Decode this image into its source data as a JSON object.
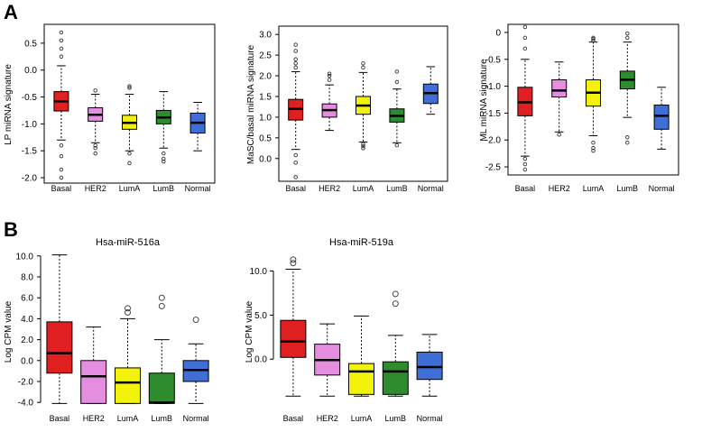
{
  "panels": {
    "a": "A",
    "b": "B"
  },
  "chart_data": [
    {
      "type": "box",
      "title": "",
      "xlabel": "",
      "ylabel": "LP miRNA signature",
      "ylim": [
        -2.1,
        0.85
      ],
      "yticks": [
        "-2.0",
        "-1.5",
        "-1.0",
        "-0.5",
        "0.0",
        "0.5"
      ],
      "categories": [
        "Basal",
        "HER2",
        "LumA",
        "LumB",
        "Normal"
      ],
      "colors": [
        "#e02020",
        "#e58ee0",
        "#f2f20a",
        "#2e8b2e",
        "#3f6fd6"
      ],
      "series": [
        {
          "name": "Basal",
          "q1": -0.76,
          "median": -0.58,
          "q3": -0.4,
          "whisker_low": -1.3,
          "whisker_high": 0.08,
          "outliers": [
            0.7,
            0.55,
            0.4,
            0.25,
            -1.4,
            -1.6,
            -1.85,
            -2.0
          ]
        },
        {
          "name": "HER2",
          "q1": -0.95,
          "median": -0.83,
          "q3": -0.7,
          "whisker_low": -1.35,
          "whisker_high": -0.45,
          "outliers": [
            -0.38,
            -1.4,
            -1.45,
            -1.55
          ]
        },
        {
          "name": "LumA",
          "q1": -1.1,
          "median": -0.98,
          "q3": -0.84,
          "whisker_low": -1.5,
          "whisker_high": -0.45,
          "outliers": [
            -0.33,
            -0.3,
            -1.55,
            -1.73
          ]
        },
        {
          "name": "LumB",
          "q1": -1.0,
          "median": -0.88,
          "q3": -0.75,
          "whisker_low": -1.45,
          "whisker_high": -0.4,
          "outliers": [
            -1.55,
            -1.65,
            -1.7
          ]
        },
        {
          "name": "Normal",
          "q1": -1.17,
          "median": -0.98,
          "q3": -0.8,
          "whisker_low": -1.5,
          "whisker_high": -0.6,
          "outliers": []
        }
      ]
    },
    {
      "type": "box",
      "title": "",
      "xlabel": "",
      "ylabel": "MaSC/basal miRNA signature",
      "ylim": [
        -0.55,
        3.2
      ],
      "yticks": [
        "0.0",
        "0.5",
        "1.0",
        "1.5",
        "2.0",
        "2.5",
        "3.0"
      ],
      "categories": [
        "Basal",
        "HER2",
        "LumA",
        "LumB",
        "Normal"
      ],
      "colors": [
        "#e02020",
        "#e58ee0",
        "#f2f20a",
        "#2e8b2e",
        "#3f6fd6"
      ],
      "series": [
        {
          "name": "Basal",
          "q1": 0.93,
          "median": 1.2,
          "q3": 1.43,
          "whisker_low": 0.22,
          "whisker_high": 2.1,
          "outliers": [
            2.75,
            2.6,
            2.4,
            2.3,
            2.2,
            0.08,
            -0.1,
            -0.45
          ]
        },
        {
          "name": "HER2",
          "q1": 1.0,
          "median": 1.17,
          "q3": 1.32,
          "whisker_low": 0.68,
          "whisker_high": 1.78,
          "outliers": [
            1.9,
            2.0,
            2.05
          ]
        },
        {
          "name": "LumA",
          "q1": 1.07,
          "median": 1.28,
          "q3": 1.5,
          "whisker_low": 0.4,
          "whisker_high": 2.08,
          "outliers": [
            2.2,
            2.3,
            0.35,
            0.3,
            0.25
          ]
        },
        {
          "name": "LumB",
          "q1": 0.88,
          "median": 1.03,
          "q3": 1.2,
          "whisker_low": 0.38,
          "whisker_high": 1.68,
          "outliers": [
            1.85,
            2.1,
            0.32
          ]
        },
        {
          "name": "Normal",
          "q1": 1.33,
          "median": 1.58,
          "q3": 1.8,
          "whisker_low": 1.07,
          "whisker_high": 2.22,
          "outliers": []
        }
      ]
    },
    {
      "type": "box",
      "title": "",
      "xlabel": "",
      "ylabel": "ML miRNA signature",
      "ylim": [
        -2.65,
        0.15
      ],
      "yticks": [
        "-2.5",
        "-2.0",
        "-1.5",
        "-1.0",
        "-0.5",
        "0"
      ],
      "categories": [
        "Basal",
        "HER2",
        "LumA",
        "LumB",
        "Normal"
      ],
      "colors": [
        "#e02020",
        "#e58ee0",
        "#f2f20a",
        "#2e8b2e",
        "#3f6fd6"
      ],
      "series": [
        {
          "name": "Basal",
          "q1": -1.55,
          "median": -1.3,
          "q3": -1.02,
          "whisker_low": -2.3,
          "whisker_high": -0.5,
          "outliers": [
            0.1,
            -0.1,
            -0.3,
            -2.35,
            -2.45,
            -2.55
          ]
        },
        {
          "name": "HER2",
          "q1": -1.2,
          "median": -1.08,
          "q3": -0.88,
          "whisker_low": -1.85,
          "whisker_high": -0.55,
          "outliers": [
            -1.9
          ]
        },
        {
          "name": "LumA",
          "q1": -1.37,
          "median": -1.12,
          "q3": -0.88,
          "whisker_low": -1.92,
          "whisker_high": -0.18,
          "outliers": [
            -0.1,
            -0.12,
            -0.15,
            -2.05,
            -2.15,
            -2.2
          ]
        },
        {
          "name": "LumB",
          "q1": -1.05,
          "median": -0.88,
          "q3": -0.72,
          "whisker_low": -1.58,
          "whisker_high": -0.18,
          "outliers": [
            -0.02,
            -0.1,
            -1.95,
            -2.05
          ]
        },
        {
          "name": "Normal",
          "q1": -1.8,
          "median": -1.55,
          "q3": -1.35,
          "whisker_low": -2.17,
          "whisker_high": -1.02,
          "outliers": []
        }
      ]
    },
    {
      "type": "box",
      "title": "Hsa-miR-516a",
      "xlabel": "",
      "ylabel": "Log CPM value",
      "ylim": [
        -4.5,
        10.5
      ],
      "yticks": [
        "-4.0",
        "-2.0",
        "0.0",
        "2.0",
        "4.0",
        "6.0",
        "8.0",
        "10.0"
      ],
      "categories": [
        "Basal",
        "HER2",
        "LumA",
        "LumB",
        "Normal"
      ],
      "colors": [
        "#e02020",
        "#e58ee0",
        "#f2f20a",
        "#2e8b2e",
        "#3f6fd6"
      ],
      "series": [
        {
          "name": "Basal",
          "q1": -1.2,
          "median": 0.7,
          "q3": 3.7,
          "whisker_low": -4.1,
          "whisker_high": 10.1,
          "outliers": []
        },
        {
          "name": "HER2",
          "q1": -4.1,
          "median": -1.5,
          "q3": 0.0,
          "whisker_low": -4.1,
          "whisker_high": 3.2,
          "outliers": []
        },
        {
          "name": "LumA",
          "q1": -4.1,
          "median": -2.1,
          "q3": -0.7,
          "whisker_low": -4.1,
          "whisker_high": 4.0,
          "outliers": [
            4.6,
            5.0
          ]
        },
        {
          "name": "LumB",
          "q1": -4.1,
          "median": -4.0,
          "q3": -1.2,
          "whisker_low": -4.1,
          "whisker_high": 2.0,
          "outliers": [
            5.2,
            6.0
          ]
        },
        {
          "name": "Normal",
          "q1": -2.0,
          "median": -0.9,
          "q3": 0.0,
          "whisker_low": -4.1,
          "whisker_high": 1.6,
          "outliers": [
            3.9
          ]
        }
      ]
    },
    {
      "type": "box",
      "title": "Hsa-miR-519a",
      "xlabel": "",
      "ylabel": "Log CPM value",
      "ylim": [
        -5.5,
        12.3
      ],
      "yticks": [
        "0.0",
        "5.0",
        "10.0"
      ],
      "categories": [
        "Basal",
        "HER2",
        "LumA",
        "LumB",
        "Normal"
      ],
      "colors": [
        "#e02020",
        "#e58ee0",
        "#f2f20a",
        "#2e8b2e",
        "#3f6fd6"
      ],
      "series": [
        {
          "name": "Basal",
          "q1": 0.2,
          "median": 2.0,
          "q3": 4.4,
          "whisker_low": -4.2,
          "whisker_high": 10.2,
          "outliers": [
            10.9,
            11.3
          ]
        },
        {
          "name": "HER2",
          "q1": -1.8,
          "median": -0.1,
          "q3": 1.7,
          "whisker_low": -4.2,
          "whisker_high": 4.0,
          "outliers": []
        },
        {
          "name": "LumA",
          "q1": -4.0,
          "median": -1.4,
          "q3": -0.5,
          "whisker_low": -4.2,
          "whisker_high": 4.9,
          "outliers": []
        },
        {
          "name": "LumB",
          "q1": -4.0,
          "median": -1.4,
          "q3": -0.3,
          "whisker_low": -4.2,
          "whisker_high": 2.7,
          "outliers": [
            6.3,
            7.4
          ]
        },
        {
          "name": "Normal",
          "q1": -2.3,
          "median": -0.9,
          "q3": 0.8,
          "whisker_low": -4.2,
          "whisker_high": 2.8,
          "outliers": []
        }
      ]
    }
  ]
}
